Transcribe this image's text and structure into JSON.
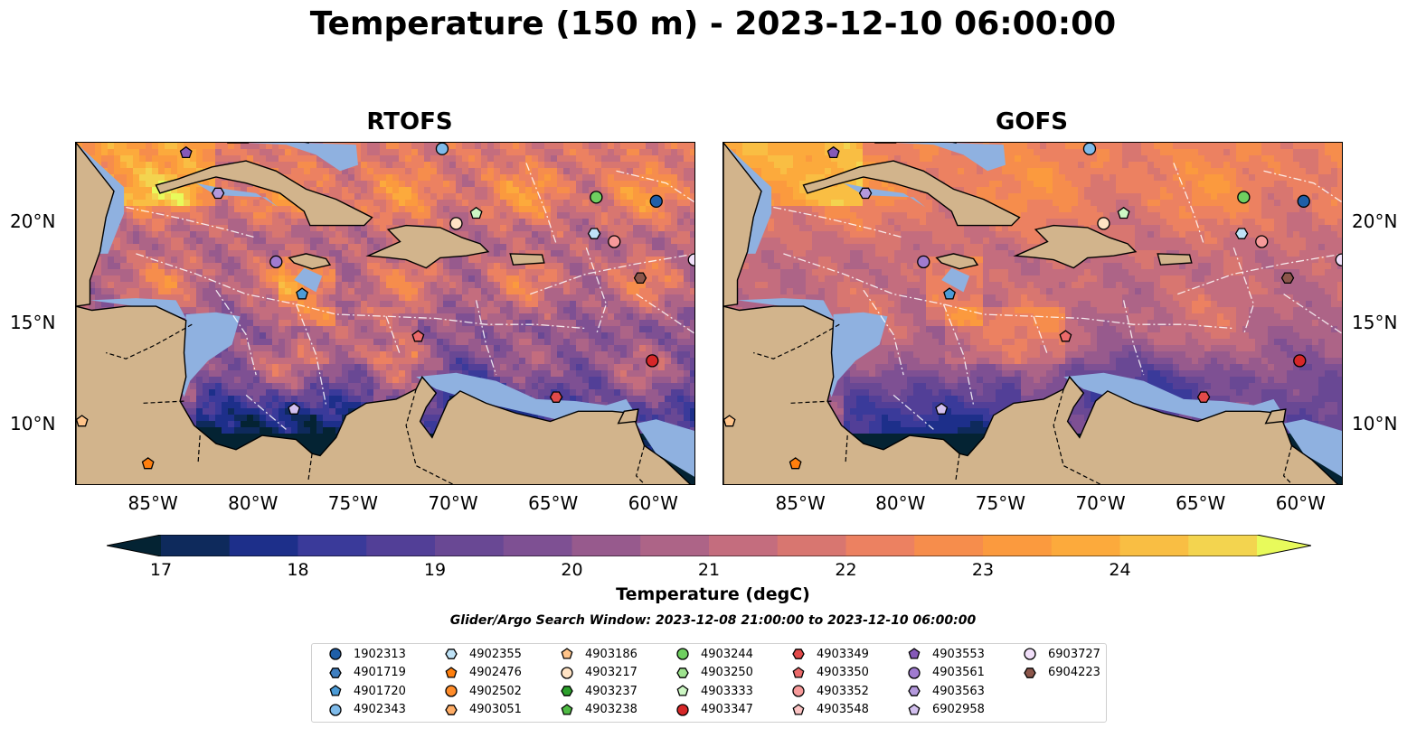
{
  "title": "Temperature (150 m) - 2023-12-10 06:00:00",
  "panels": [
    {
      "title": "RTOFS",
      "variant": "rtofs"
    },
    {
      "title": "GOFS",
      "variant": "gofs"
    }
  ],
  "map": {
    "lon_range": [
      -89,
      -58
    ],
    "lat_range": [
      7,
      24
    ],
    "lon_ticks": [
      {
        "value": -85,
        "label": "85°W"
      },
      {
        "value": -80,
        "label": "80°W"
      },
      {
        "value": -75,
        "label": "75°W"
      },
      {
        "value": -70,
        "label": "70°W"
      },
      {
        "value": -65,
        "label": "65°W"
      },
      {
        "value": -60,
        "label": "60°W"
      }
    ],
    "lat_ticks": [
      {
        "value": 10,
        "label": "10°N"
      },
      {
        "value": 15,
        "label": "15°N"
      },
      {
        "value": 20,
        "label": "20°N"
      }
    ],
    "land_color": "#d2b48c",
    "shelf_color": "#8fb1e0"
  },
  "colorbar": {
    "label": "Temperature (degC)",
    "vmin": 16.75,
    "vmax": 24.5,
    "ticks": [
      "17",
      "18",
      "19",
      "20",
      "21",
      "22",
      "23",
      "24"
    ],
    "colors": [
      "#042333",
      "#0e2a5c",
      "#1d2f8a",
      "#3a3a9a",
      "#523f97",
      "#694894",
      "#7e5093",
      "#975a8d",
      "#ad6487",
      "#c46d7e",
      "#d87670",
      "#ec8161",
      "#f68d4c",
      "#fb9a3e",
      "#fcaa3c",
      "#f9be43",
      "#f3d44f",
      "#e8fa5b"
    ]
  },
  "search_window": "Glider/Argo Search Window: 2023-12-08 21:00:00 to 2023-12-10 06:00:00",
  "floats": [
    {
      "id": "1902313",
      "color": "#1f5fa8",
      "marker": "circle",
      "rtofs": [
        -60,
        21.1
      ],
      "gofs": [
        -60,
        21.1
      ]
    },
    {
      "id": "4901719",
      "color": "#3f7fc0",
      "marker": "hexagon",
      "rtofs": null,
      "gofs": null
    },
    {
      "id": "4901720",
      "color": "#4b9bd6",
      "marker": "pentagon",
      "rtofs": [
        -77.7,
        16.5
      ],
      "gofs": [
        -77.7,
        16.5
      ]
    },
    {
      "id": "4902343",
      "color": "#7fbbea",
      "marker": "circle",
      "rtofs": [
        -70.7,
        23.7
      ],
      "gofs": [
        -70.7,
        23.7
      ]
    },
    {
      "id": "4902355",
      "color": "#bfe3f7",
      "marker": "hexagon",
      "rtofs": [
        -63.1,
        19.5
      ],
      "gofs": [
        -63.1,
        19.5
      ]
    },
    {
      "id": "4902476",
      "color": "#ff7f0e",
      "marker": "pentagon",
      "rtofs": [
        -85.4,
        8.1
      ],
      "gofs": [
        -85.4,
        8.1
      ]
    },
    {
      "id": "4902502",
      "color": "#ff8c2a",
      "marker": "circle",
      "rtofs": null,
      "gofs": null
    },
    {
      "id": "4903051",
      "color": "#ffad66",
      "marker": "hexagon",
      "rtofs": null,
      "gofs": null
    },
    {
      "id": "4903186",
      "color": "#ffc48a",
      "marker": "pentagon",
      "rtofs": [
        -88.7,
        10.2
      ],
      "gofs": [
        -88.7,
        10.2
      ]
    },
    {
      "id": "4903217",
      "color": "#ffe3c4",
      "marker": "circle",
      "rtofs": [
        -70,
        20
      ],
      "gofs": [
        -70,
        20
      ]
    },
    {
      "id": "4903237",
      "color": "#2ca02c",
      "marker": "hexagon",
      "rtofs": null,
      "gofs": null
    },
    {
      "id": "4903238",
      "color": "#4fbb44",
      "marker": "pentagon",
      "rtofs": null,
      "gofs": null
    },
    {
      "id": "4903244",
      "color": "#6fcf60",
      "marker": "circle",
      "rtofs": [
        -63,
        21.3
      ],
      "gofs": [
        -63,
        21.3
      ]
    },
    {
      "id": "4903250",
      "color": "#9ee38e",
      "marker": "hexagon",
      "rtofs": null,
      "gofs": null
    },
    {
      "id": "4903333",
      "color": "#cdf7c4",
      "marker": "pentagon",
      "rtofs": [
        -69,
        20.5
      ],
      "gofs": [
        -69,
        20.5
      ]
    },
    {
      "id": "4903347",
      "color": "#d62728",
      "marker": "circle",
      "rtofs": [
        -60.2,
        13.2
      ],
      "gofs": [
        -60.2,
        13.2
      ]
    },
    {
      "id": "4903349",
      "color": "#e24a4a",
      "marker": "hexagon",
      "rtofs": [
        -65,
        11.4
      ],
      "gofs": [
        -65,
        11.4
      ]
    },
    {
      "id": "4903350",
      "color": "#ec6a6a",
      "marker": "pentagon",
      "rtofs": [
        -71.9,
        14.4
      ],
      "gofs": [
        -71.9,
        14.4
      ]
    },
    {
      "id": "4903352",
      "color": "#f79a9a",
      "marker": "circle",
      "rtofs": [
        -62.1,
        19.1
      ],
      "gofs": [
        -62.1,
        19.1
      ]
    },
    {
      "id": "4903548",
      "color": "#fcc4c4",
      "marker": "pentagon",
      "rtofs": null,
      "gofs": null
    },
    {
      "id": "4903553",
      "color": "#8559b8",
      "marker": "pentagon",
      "rtofs": [
        -83.5,
        23.5
      ],
      "gofs": [
        -83.5,
        23.5
      ]
    },
    {
      "id": "4903561",
      "color": "#a07bd0",
      "marker": "circle",
      "rtofs": [
        -79,
        18.1
      ],
      "gofs": [
        -79,
        18.1
      ]
    },
    {
      "id": "4903563",
      "color": "#b499dc",
      "marker": "hexagon",
      "rtofs": [
        -81.9,
        21.5
      ],
      "gofs": [
        -81.9,
        21.5
      ]
    },
    {
      "id": "6902958",
      "color": "#d3c0ef",
      "marker": "pentagon",
      "rtofs": [
        -78.1,
        10.8
      ],
      "gofs": [
        -78.1,
        10.8
      ]
    },
    {
      "id": "6903727",
      "color": "#f1dff9",
      "marker": "circle",
      "rtofs": [
        -58.1,
        18.2
      ],
      "gofs": [
        -58.1,
        18.2
      ]
    },
    {
      "id": "6904223",
      "color": "#8c564b",
      "marker": "hexagon",
      "rtofs": [
        -60.8,
        17.3
      ],
      "gofs": [
        -60.8,
        17.3
      ]
    }
  ]
}
